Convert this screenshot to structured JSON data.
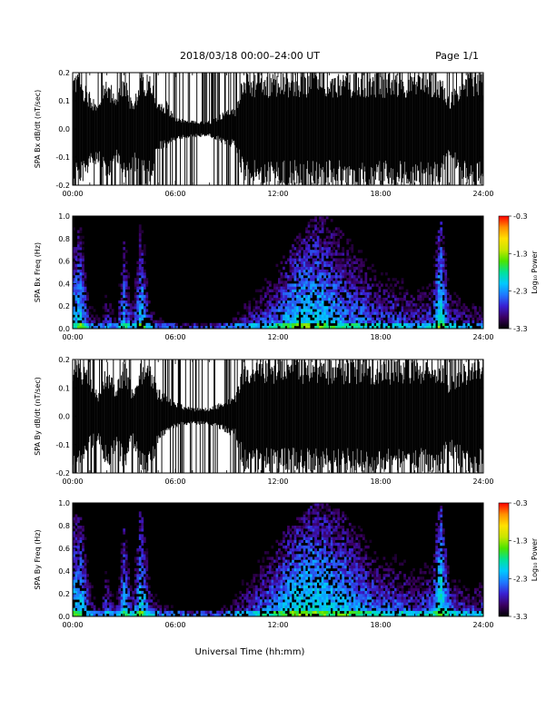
{
  "header": {
    "date_range": "2018/03/18   00:00–24:00 UT",
    "page": "Page 1/1"
  },
  "colorbar_colors": [
    "#000000",
    "#3b0062",
    "#3a1fd2",
    "#1f78ff",
    "#00c8ff",
    "#00e29a",
    "#4be400",
    "#c8e600",
    "#ffe000",
    "#ff9000",
    "#ff0000"
  ],
  "chart_data": [
    {
      "type": "line",
      "ylabel": "SPA Bx dB/dt (nT/sec)",
      "xlim": [
        "00:00",
        "24:00"
      ],
      "ylim": [
        -0.2,
        0.2
      ],
      "x_ticks": [
        "00:00",
        "06:00",
        "12:00",
        "18:00",
        "24:00"
      ],
      "y_ticks": [
        "-0.2",
        "-0.1",
        "0.0",
        "0.1",
        "0.2"
      ],
      "envelope_x_hours": [
        0,
        0.5,
        1,
        1.5,
        2,
        2.5,
        3,
        3.5,
        4,
        4.5,
        5,
        5.5,
        6,
        7,
        8,
        9,
        9.5,
        10,
        11,
        12,
        12.5,
        13,
        14,
        15,
        16,
        17,
        18,
        19,
        20,
        21,
        21.5,
        22,
        23,
        24
      ],
      "envelope_upper": [
        0.2,
        0.2,
        0.13,
        0.1,
        0.2,
        0.12,
        0.2,
        0.1,
        0.2,
        0.2,
        0.1,
        0.1,
        0.04,
        0.03,
        0.03,
        0.07,
        0.08,
        0.2,
        0.2,
        0.2,
        0.2,
        0.2,
        0.2,
        0.2,
        0.2,
        0.2,
        0.2,
        0.2,
        0.2,
        0.2,
        0.2,
        0.12,
        0.2,
        0.2
      ],
      "envelope_lower": [
        -0.2,
        -0.2,
        -0.15,
        -0.12,
        -0.2,
        -0.1,
        -0.2,
        -0.13,
        -0.2,
        -0.2,
        -0.08,
        -0.07,
        -0.04,
        -0.03,
        -0.03,
        -0.06,
        -0.07,
        -0.2,
        -0.2,
        -0.2,
        -0.2,
        -0.2,
        -0.2,
        -0.2,
        -0.2,
        -0.2,
        -0.2,
        -0.2,
        -0.2,
        -0.2,
        -0.2,
        -0.12,
        -0.2,
        -0.2
      ]
    },
    {
      "type": "heatmap",
      "ylabel": "SPA Bx Freq (Hz)",
      "colorbar_label": "Log₁₀ Power",
      "colorbar_ticks": [
        "-0.3",
        "-1.3",
        "-2.3",
        "-3.3"
      ],
      "colorbar_range": [
        -3.3,
        -0.3
      ],
      "xlim": [
        "00:00",
        "24:00"
      ],
      "ylim": [
        0,
        1.0
      ],
      "x_ticks": [
        "00:00",
        "06:00",
        "12:00",
        "18:00",
        "24:00"
      ],
      "y_ticks": [
        "0.0",
        "0.2",
        "0.4",
        "0.6",
        "0.8",
        "1.0"
      ],
      "activity_x_hours": [
        0,
        0.5,
        1,
        1.5,
        2,
        2.5,
        3,
        3.5,
        4,
        4.5,
        5,
        6,
        7,
        8,
        9,
        10,
        11,
        12,
        13,
        14,
        15,
        16,
        17,
        18,
        19,
        20,
        21,
        21.5,
        22,
        23,
        24
      ],
      "activity_top_freq_hz": [
        0.9,
        0.9,
        0.5,
        0.3,
        0.5,
        0.3,
        0.9,
        0.4,
        1.0,
        0.4,
        0.25,
        0.15,
        0.1,
        0.1,
        0.15,
        0.4,
        0.5,
        0.6,
        0.8,
        1.0,
        1.0,
        0.9,
        0.8,
        0.6,
        0.6,
        0.5,
        0.6,
        1.0,
        0.5,
        0.4,
        0.4
      ],
      "activity_peak_log_power": [
        -2.2,
        -2.0,
        -2.8,
        -3.0,
        -2.6,
        -2.9,
        -2.2,
        -2.7,
        -2.0,
        -2.6,
        -2.9,
        -3.0,
        -3.0,
        -3.0,
        -2.9,
        -2.7,
        -2.5,
        -2.3,
        -2.0,
        -2.0,
        -2.1,
        -2.3,
        -2.4,
        -2.5,
        -2.5,
        -2.6,
        -2.5,
        -1.8,
        -2.5,
        -2.7,
        -2.6
      ]
    },
    {
      "type": "line",
      "ylabel": "SPA By dB/dt (nT/sec)",
      "xlim": [
        "00:00",
        "24:00"
      ],
      "ylim": [
        -0.2,
        0.2
      ],
      "x_ticks": [
        "00:00",
        "06:00",
        "12:00",
        "18:00",
        "24:00"
      ],
      "y_ticks": [
        "-0.2",
        "-0.1",
        "0.0",
        "0.1",
        "0.2"
      ],
      "envelope_x_hours": [
        0,
        0.5,
        1,
        1.5,
        2,
        2.5,
        3,
        3.5,
        4,
        4.5,
        5,
        5.5,
        6,
        7,
        8,
        9,
        9.5,
        10,
        11,
        12,
        12.5,
        13,
        14,
        15,
        16,
        17,
        18,
        19,
        20,
        21,
        21.5,
        22,
        23,
        24
      ],
      "envelope_upper": [
        0.2,
        0.2,
        0.15,
        0.08,
        0.2,
        0.1,
        0.2,
        0.1,
        0.2,
        0.2,
        0.1,
        0.08,
        0.05,
        0.03,
        0.03,
        0.06,
        0.08,
        0.2,
        0.2,
        0.2,
        0.2,
        0.2,
        0.2,
        0.2,
        0.2,
        0.2,
        0.2,
        0.2,
        0.2,
        0.2,
        0.2,
        0.14,
        0.2,
        0.2
      ],
      "envelope_lower": [
        -0.2,
        -0.2,
        -0.12,
        -0.1,
        -0.2,
        -0.12,
        -0.2,
        -0.1,
        -0.2,
        -0.2,
        -0.1,
        -0.07,
        -0.04,
        -0.03,
        -0.03,
        -0.06,
        -0.08,
        -0.2,
        -0.2,
        -0.2,
        -0.2,
        -0.2,
        -0.2,
        -0.2,
        -0.2,
        -0.2,
        -0.2,
        -0.2,
        -0.2,
        -0.2,
        -0.2,
        -0.14,
        -0.2,
        -0.2
      ]
    },
    {
      "type": "heatmap",
      "ylabel": "SPA By Freq (Hz)",
      "colorbar_label": "Log₁₀ Power",
      "colorbar_ticks": [
        "-0.3",
        "-1.3",
        "-2.3",
        "-3.3"
      ],
      "colorbar_range": [
        -3.3,
        -0.3
      ],
      "xlim": [
        "00:00",
        "24:00"
      ],
      "ylim": [
        0,
        1.0
      ],
      "x_ticks": [
        "00:00",
        "06:00",
        "12:00",
        "18:00",
        "24:00"
      ],
      "y_ticks": [
        "0.0",
        "0.2",
        "0.4",
        "0.6",
        "0.8",
        "1.0"
      ],
      "activity_x_hours": [
        0,
        0.5,
        1,
        1.5,
        2,
        2.5,
        3,
        3.5,
        4,
        4.5,
        5,
        6,
        7,
        8,
        9,
        10,
        11,
        12,
        13,
        14,
        15,
        16,
        17,
        18,
        19,
        20,
        21,
        21.5,
        22,
        23,
        24
      ],
      "activity_top_freq_hz": [
        0.9,
        0.9,
        0.6,
        0.3,
        0.6,
        0.3,
        0.9,
        0.4,
        1.0,
        0.4,
        0.3,
        0.2,
        0.15,
        0.15,
        0.2,
        0.45,
        0.6,
        0.7,
        0.85,
        1.0,
        1.0,
        0.9,
        0.8,
        0.6,
        0.6,
        0.5,
        0.6,
        1.0,
        0.5,
        0.4,
        0.4
      ],
      "activity_peak_log_power": [
        -2.1,
        -2.0,
        -2.7,
        -3.0,
        -2.5,
        -2.9,
        -2.1,
        -2.6,
        -1.9,
        -2.5,
        -2.8,
        -2.9,
        -3.0,
        -3.0,
        -2.8,
        -2.6,
        -2.4,
        -2.2,
        -1.9,
        -1.9,
        -2.0,
        -2.1,
        -2.3,
        -2.4,
        -2.4,
        -2.5,
        -2.4,
        -1.7,
        -2.4,
        -2.6,
        -2.5
      ]
    }
  ],
  "xaxis_label": "Universal Time (hh:mm)"
}
